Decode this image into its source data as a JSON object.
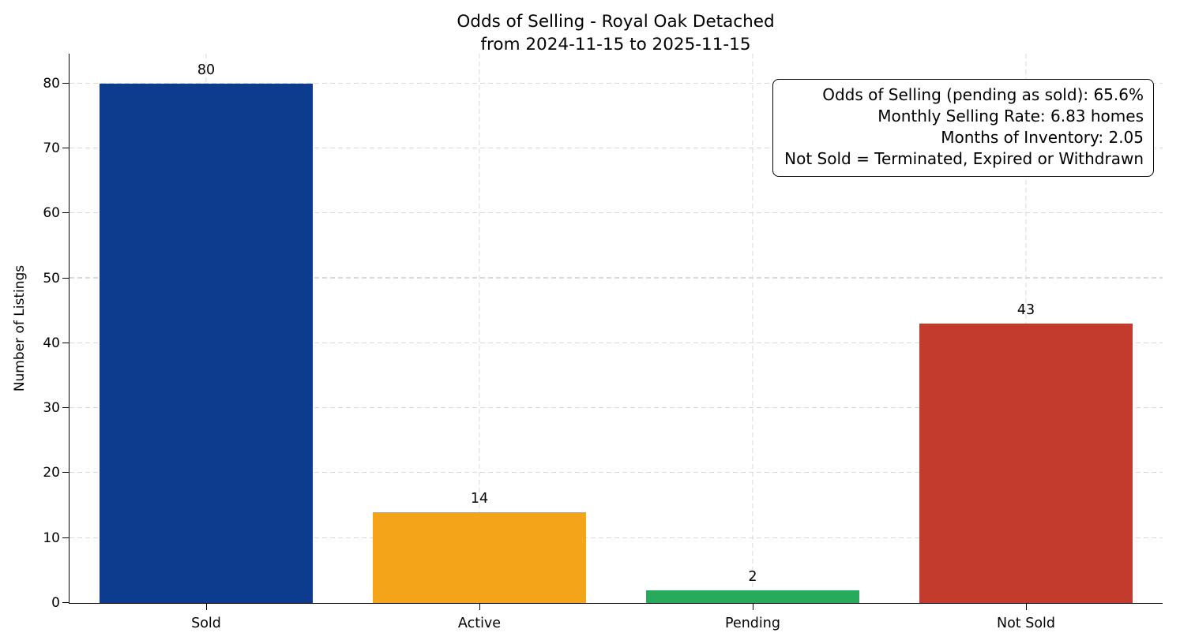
{
  "chart_data": {
    "type": "bar",
    "title": "Odds of Selling - Royal Oak Detached",
    "subtitle": "from 2024-11-15 to 2025-11-15",
    "categories": [
      "Sold",
      "Active",
      "Pending",
      "Not Sold"
    ],
    "values": [
      80,
      14,
      2,
      43
    ],
    "bar_colors": [
      "#0d3b8e",
      "#f4a418",
      "#28a95c",
      "#c23b2d"
    ],
    "xlabel": "",
    "ylabel": "Number of Listings",
    "ylim": [
      0,
      84.6
    ],
    "yticks": [
      0,
      10,
      20,
      30,
      40,
      50,
      60,
      70,
      80
    ],
    "grid": "dashed both axes, light gray, behind bars",
    "legend": "none",
    "annotation_lines": [
      "Odds of Selling (pending as sold): 65.6%",
      "Monthly Selling Rate: 6.83 homes",
      "Months of Inventory: 2.05",
      "Not Sold = Terminated, Expired or Withdrawn"
    ]
  }
}
